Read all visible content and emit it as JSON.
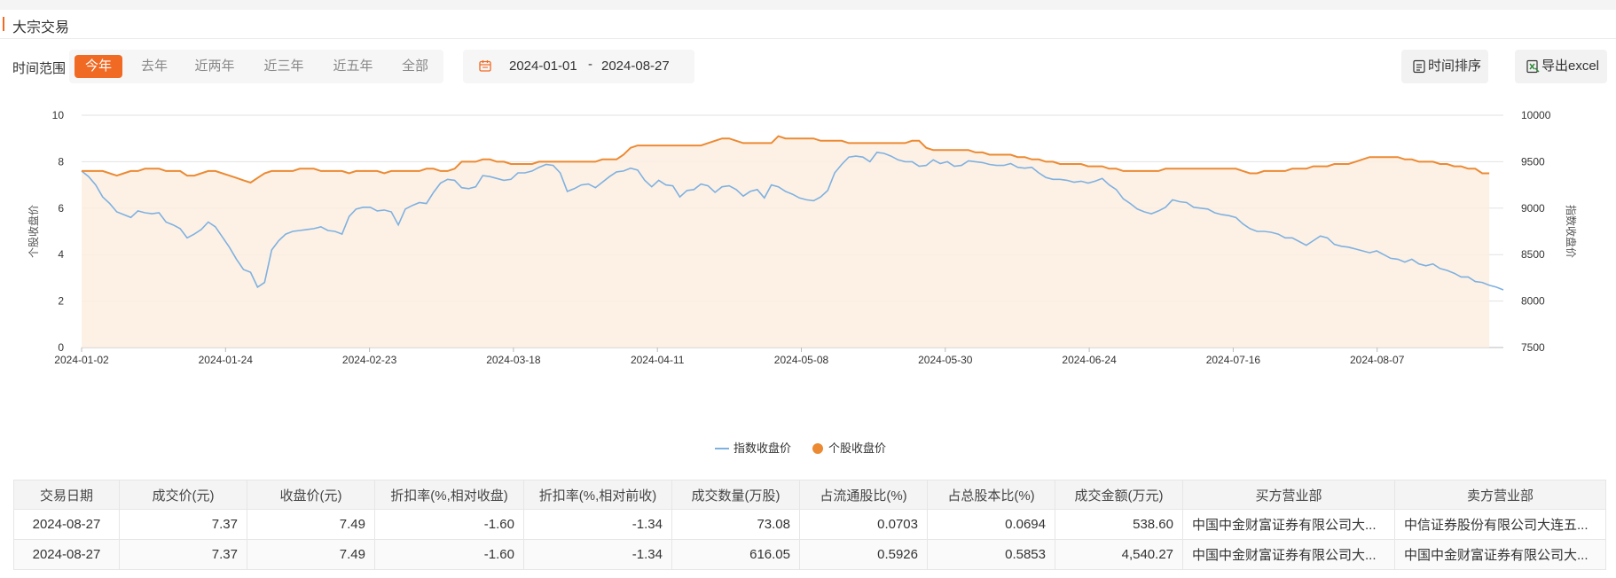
{
  "header": {
    "title": "大宗交易"
  },
  "toolbar": {
    "range_label": "时间范围",
    "ranges": [
      "今年",
      "去年",
      "近两年",
      "近三年",
      "近五年",
      "全部"
    ],
    "active_range": "今年",
    "date_start": "2024-01-01",
    "date_sep": "-",
    "date_end": "2024-08-27",
    "sort_label": "时间排序",
    "export_label": "导出excel"
  },
  "colors": {
    "accent": "#f06a23",
    "index_line": "#7fb1e0",
    "stock_line": "#ec8a33",
    "area_fill": "#fdeee2"
  },
  "chart_data": {
    "type": "line",
    "x_tick_labels": [
      "2024-01-02",
      "2024-01-24",
      "2024-02-23",
      "2024-03-18",
      "2024-04-11",
      "2024-05-08",
      "2024-05-30",
      "2024-06-24",
      "2024-07-16",
      "2024-08-07"
    ],
    "ylabel_left": "个股收盘价",
    "ylabel_right": "指数收盘价",
    "ylim_left": [
      0,
      10
    ],
    "yticks_left": [
      "0",
      "2",
      "4",
      "6",
      "8",
      "10"
    ],
    "ylim_right": [
      7500,
      10000
    ],
    "yticks_right": [
      "7500",
      "8000",
      "8500",
      "9000",
      "9500",
      "10000"
    ],
    "grid": true,
    "legend_position": "bottom-center",
    "series": [
      {
        "name": "指数收盘价",
        "axis": "right",
        "values": [
          9400,
          9340,
          9250,
          9120,
          9050,
          8960,
          8930,
          8900,
          8970,
          8950,
          8940,
          8950,
          8850,
          8820,
          8780,
          8680,
          8720,
          8770,
          8850,
          8800,
          8690,
          8580,
          8450,
          8340,
          8310,
          8150,
          8200,
          8550,
          8650,
          8720,
          8750,
          8760,
          8770,
          8780,
          8800,
          8760,
          8750,
          8720,
          8910,
          8990,
          9010,
          9010,
          8970,
          8980,
          8960,
          8820,
          8990,
          9030,
          9060,
          9050,
          9170,
          9270,
          9310,
          9300,
          9220,
          9210,
          9230,
          9350,
          9340,
          9320,
          9300,
          9310,
          9380,
          9380,
          9400,
          9440,
          9470,
          9460,
          9380,
          9180,
          9210,
          9250,
          9260,
          9220,
          9280,
          9340,
          9390,
          9400,
          9430,
          9410,
          9300,
          9230,
          9300,
          9250,
          9240,
          9120,
          9190,
          9200,
          9260,
          9240,
          9170,
          9230,
          9240,
          9200,
          9130,
          9180,
          9200,
          9110,
          9250,
          9230,
          9180,
          9150,
          9110,
          9090,
          9080,
          9120,
          9190,
          9380,
          9470,
          9550,
          9560,
          9550,
          9500,
          9600,
          9590,
          9560,
          9520,
          9500,
          9500,
          9450,
          9460,
          9520,
          9480,
          9500,
          9450,
          9460,
          9510,
          9500,
          9490,
          9470,
          9460,
          9460,
          9480,
          9440,
          9430,
          9440,
          9380,
          9330,
          9310,
          9310,
          9300,
          9280,
          9290,
          9270,
          9290,
          9320,
          9250,
          9200,
          9100,
          9050,
          8990,
          8960,
          8940,
          8970,
          9010,
          9090,
          9070,
          9060,
          9010,
          9000,
          8990,
          8950,
          8930,
          8920,
          8900,
          8830,
          8780,
          8750,
          8750,
          8740,
          8720,
          8680,
          8680,
          8640,
          8600,
          8650,
          8700,
          8680,
          8610,
          8590,
          8580,
          8560,
          8540,
          8520,
          8540,
          8500,
          8460,
          8450,
          8420,
          8450,
          8400,
          8380,
          8400,
          8350,
          8330,
          8300,
          8260,
          8260,
          8210,
          8200,
          8170,
          8150,
          8120
        ]
      },
      {
        "name": "个股收盘价",
        "axis": "left",
        "values": [
          7.6,
          7.6,
          7.6,
          7.6,
          7.5,
          7.4,
          7.5,
          7.6,
          7.6,
          7.7,
          7.7,
          7.7,
          7.6,
          7.6,
          7.6,
          7.4,
          7.4,
          7.5,
          7.6,
          7.6,
          7.5,
          7.4,
          7.3,
          7.2,
          7.1,
          7.3,
          7.5,
          7.6,
          7.6,
          7.6,
          7.6,
          7.7,
          7.7,
          7.7,
          7.6,
          7.6,
          7.6,
          7.6,
          7.5,
          7.6,
          7.6,
          7.6,
          7.6,
          7.5,
          7.6,
          7.6,
          7.6,
          7.6,
          7.6,
          7.7,
          7.7,
          7.6,
          7.6,
          7.7,
          8.0,
          8.0,
          8.0,
          8.1,
          8.1,
          8.0,
          8.0,
          7.9,
          7.9,
          7.9,
          7.9,
          8.0,
          8.0,
          8.0,
          8.0,
          8.0,
          8.0,
          8.0,
          8.0,
          8.0,
          8.1,
          8.1,
          8.1,
          8.3,
          8.6,
          8.7,
          8.7,
          8.7,
          8.7,
          8.7,
          8.7,
          8.7,
          8.7,
          8.7,
          8.7,
          8.8,
          8.9,
          9.0,
          9.0,
          8.9,
          8.8,
          8.8,
          8.8,
          8.8,
          8.8,
          9.1,
          9.0,
          9.0,
          9.0,
          9.0,
          9.0,
          8.9,
          8.9,
          8.9,
          8.9,
          8.8,
          8.8,
          8.8,
          8.8,
          8.8,
          8.8,
          8.8,
          8.8,
          8.8,
          8.9,
          8.9,
          8.6,
          8.5,
          8.5,
          8.5,
          8.5,
          8.5,
          8.5,
          8.4,
          8.4,
          8.3,
          8.3,
          8.3,
          8.3,
          8.2,
          8.2,
          8.1,
          8.1,
          8.0,
          8.0,
          7.9,
          7.9,
          7.9,
          7.9,
          7.8,
          7.8,
          7.8,
          7.7,
          7.7,
          7.6,
          7.6,
          7.6,
          7.6,
          7.6,
          7.6,
          7.7,
          7.7,
          7.7,
          7.7,
          7.7,
          7.7,
          7.7,
          7.7,
          7.7,
          7.7,
          7.7,
          7.6,
          7.5,
          7.5,
          7.6,
          7.6,
          7.6,
          7.6,
          7.7,
          7.7,
          7.7,
          7.8,
          7.8,
          7.8,
          7.9,
          7.9,
          7.9,
          8.0,
          8.1,
          8.2,
          8.2,
          8.2,
          8.2,
          8.2,
          8.1,
          8.1,
          8.0,
          8.0,
          8.0,
          7.9,
          7.9,
          7.8,
          7.8,
          7.7,
          7.7,
          7.5,
          7.5
        ]
      }
    ]
  },
  "table": {
    "headers": [
      "交易日期",
      "成交价(元)",
      "收盘价(元)",
      "折扣率(%,相对收盘)",
      "折扣率(%,相对前收)",
      "成交数量(万股)",
      "占流通股比(%)",
      "占总股本比(%)",
      "成交金额(万元)",
      "买方营业部",
      "卖方营业部"
    ],
    "rows": [
      [
        "2024-08-27",
        "7.37",
        "7.49",
        "-1.60",
        "-1.34",
        "73.08",
        "0.0703",
        "0.0694",
        "538.60",
        "中国中金财富证券有限公司大...",
        "中信证券股份有限公司大连五..."
      ],
      [
        "2024-08-27",
        "7.37",
        "7.49",
        "-1.60",
        "-1.34",
        "616.05",
        "0.5926",
        "0.5853",
        "4,540.27",
        "中国中金财富证券有限公司大...",
        "中国中金财富证券有限公司大..."
      ]
    ]
  }
}
